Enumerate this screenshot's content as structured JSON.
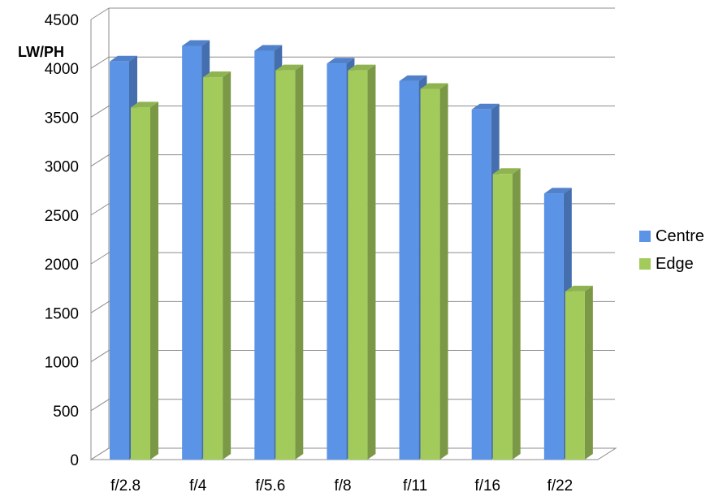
{
  "chart_data": {
    "type": "bar",
    "ylabel": "LW/PH",
    "categories": [
      "f/2.8",
      "f/4",
      "f/5.6",
      "f/8",
      "f/11",
      "f/16",
      "f/22"
    ],
    "series": [
      {
        "name": "Centre",
        "color": "#5B93E6",
        "values": [
          4070,
          4230,
          4180,
          4050,
          3870,
          3580,
          2720
        ]
      },
      {
        "name": "Edge",
        "color": "#A2CB5C",
        "values": [
          3600,
          3910,
          3980,
          3980,
          3790,
          2920,
          1720
        ]
      }
    ],
    "ylim": [
      0,
      4500
    ],
    "yticks": [
      "0",
      "500",
      "1000",
      "1500",
      "2000",
      "2500",
      "3000",
      "3500",
      "4000",
      "4500"
    ],
    "grid": true,
    "legend_position": "right",
    "style": "3d-clustered-column"
  }
}
